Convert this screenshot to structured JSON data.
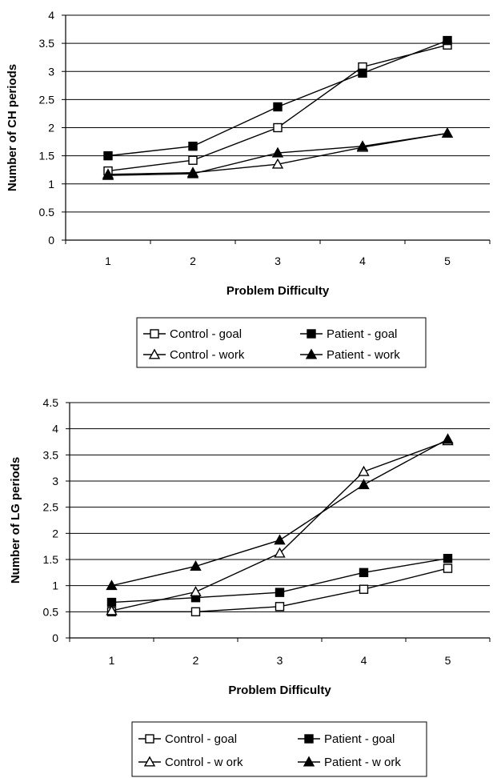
{
  "chart_data": [
    {
      "type": "line",
      "categories": [
        "1",
        "2",
        "3",
        "4",
        "5"
      ],
      "xlabel": "Problem Difficulty",
      "ylabel": "Number of CH periods",
      "ylim": [
        0,
        4
      ],
      "yticks": [
        "0",
        "0.5",
        "1",
        "1.5",
        "2",
        "2.5",
        "3",
        "3.5",
        "4"
      ],
      "grid": "horizontal",
      "legend_position": "bottom",
      "series": [
        {
          "name": "Control - goal",
          "marker": "open-square",
          "values": [
            1.23,
            1.42,
            2.0,
            3.08,
            3.47
          ]
        },
        {
          "name": "Patient - goal",
          "marker": "filled-square",
          "values": [
            1.5,
            1.67,
            2.37,
            2.97,
            3.55
          ]
        },
        {
          "name": "Control - work",
          "marker": "open-triangle",
          "values": [
            1.17,
            1.2,
            1.35,
            1.65,
            1.9
          ]
        },
        {
          "name": "Patient - work",
          "marker": "filled-triangle",
          "values": [
            1.15,
            1.18,
            1.55,
            1.67,
            1.9
          ]
        }
      ]
    },
    {
      "type": "line",
      "categories": [
        "1",
        "2",
        "3",
        "4",
        "5"
      ],
      "xlabel": "Problem Difficulty",
      "ylabel": "Number of LG periods",
      "ylim": [
        0,
        4.5
      ],
      "yticks": [
        "0",
        "0.5",
        "1",
        "1.5",
        "2",
        "2.5",
        "3",
        "3.5",
        "4",
        "4.5"
      ],
      "grid": "horizontal",
      "legend_position": "bottom",
      "series": [
        {
          "name": "Control - goal",
          "marker": "open-square",
          "values": [
            0.5,
            0.5,
            0.6,
            0.93,
            1.33
          ]
        },
        {
          "name": "Patient - goal",
          "marker": "filled-square",
          "values": [
            0.68,
            0.77,
            0.87,
            1.25,
            1.52
          ]
        },
        {
          "name": "Control - w ork",
          "marker": "open-triangle",
          "values": [
            0.52,
            0.88,
            1.62,
            3.18,
            3.77
          ]
        },
        {
          "name": "Patient - w ork",
          "marker": "filled-triangle",
          "values": [
            1.0,
            1.37,
            1.87,
            2.93,
            3.8
          ]
        }
      ]
    }
  ]
}
